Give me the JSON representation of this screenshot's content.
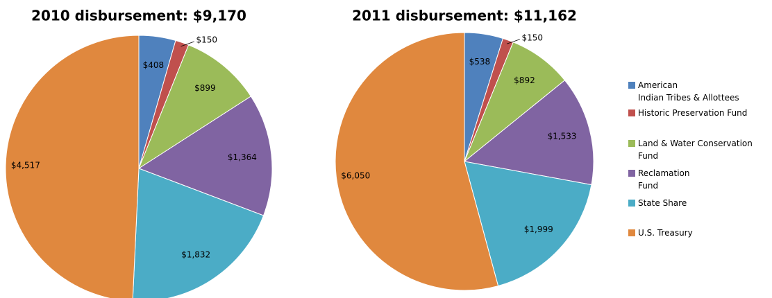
{
  "chart_data": [
    {
      "type": "pie",
      "title": "2010 disbursement: $9,170",
      "categories": [
        "American\nIndian Tribes & Allottees",
        "Historic Preservation Fund",
        "Land & Water Conservation\nFund",
        "Reclamation\nFund",
        "State Share",
        "U.S. Treasury"
      ],
      "values": [
        408,
        150,
        899,
        1364,
        1832,
        4517
      ],
      "value_labels": [
        "$408",
        "$150",
        "$899",
        "$1,364",
        "$1,832",
        "$4,517"
      ],
      "colors": [
        "#4f81bd",
        "#c0504d",
        "#9bbb59",
        "#8064a2",
        "#4bacc6",
        "#e0883e"
      ],
      "legend": "right"
    },
    {
      "type": "pie",
      "title": "2011 disbursement: $11,162",
      "values": [
        538,
        150,
        892,
        1533,
        1999,
        6050
      ],
      "value_labels": [
        "$538",
        "$150",
        "$892",
        "$1,533",
        "$1,999",
        "$6,050"
      ],
      "colors": [
        "#4f81bd",
        "#c0504d",
        "#9bbb59",
        "#8064a2",
        "#4bacc6",
        "#e0883e"
      ]
    }
  ]
}
